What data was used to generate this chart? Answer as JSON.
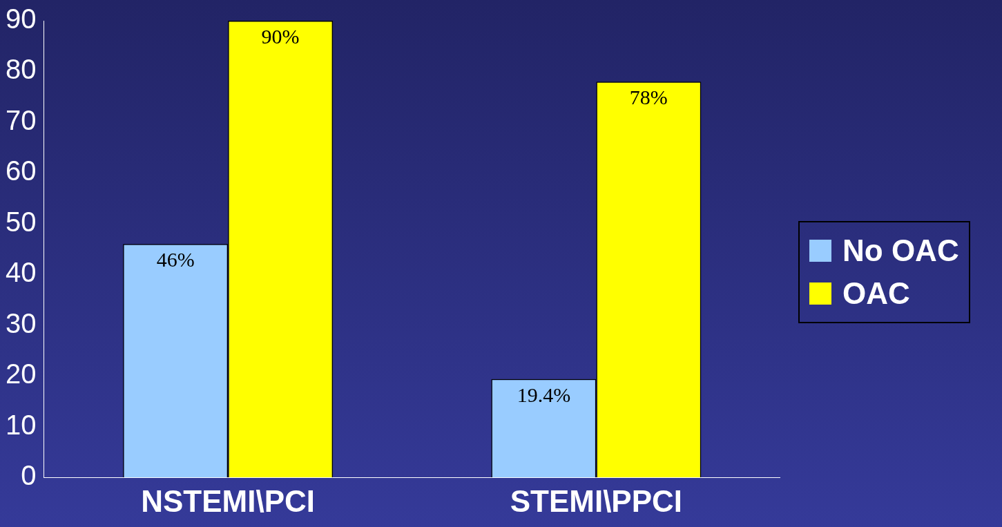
{
  "chart_data": {
    "type": "bar",
    "categories": [
      "NSTEMI\\PCI",
      "STEMI\\PPCI"
    ],
    "series": [
      {
        "name": "No OAC",
        "color": "#99ccff",
        "values": [
          46,
          19.4
        ],
        "value_labels": [
          "46%",
          "19.4%"
        ]
      },
      {
        "name": "OAC",
        "color": "#ffff00",
        "values": [
          90,
          78
        ],
        "value_labels": [
          "90%",
          "78%"
        ]
      }
    ],
    "ylim": [
      0,
      90
    ],
    "yticks": [
      0,
      10,
      20,
      30,
      40,
      50,
      60,
      70,
      80,
      90
    ],
    "grid": false,
    "legend": "right"
  }
}
